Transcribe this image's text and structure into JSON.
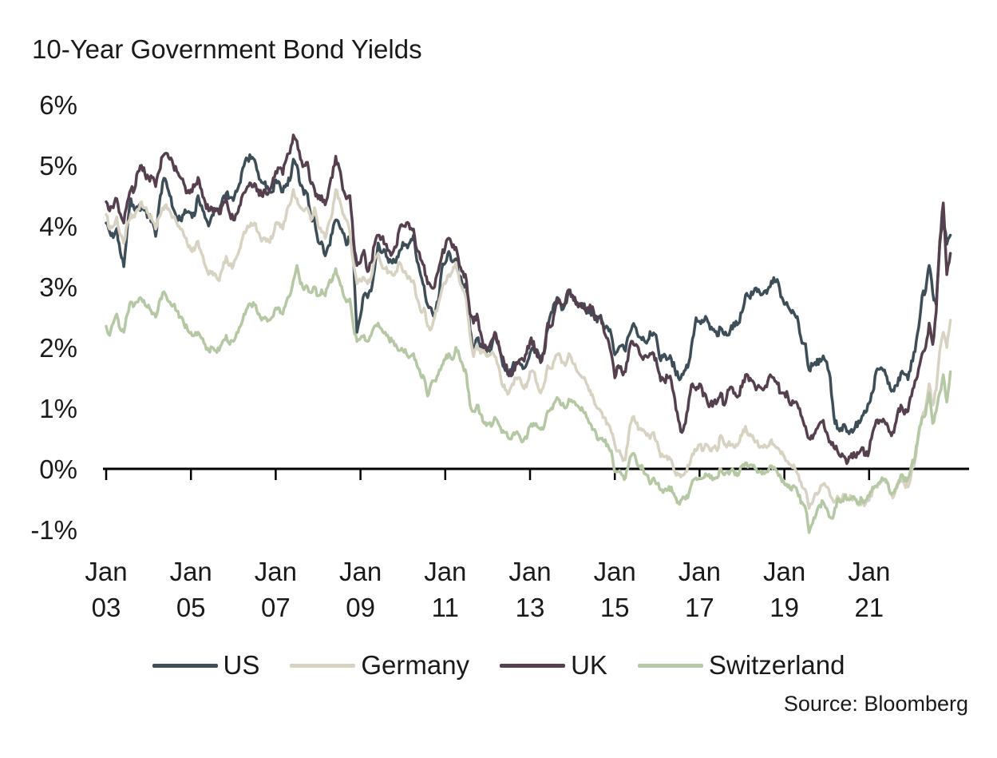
{
  "chart_data": {
    "type": "line",
    "title": "10-Year Government Bond Yields",
    "xlabel": "",
    "ylabel": "",
    "y_unit": "%",
    "ylim": [
      -1,
      6
    ],
    "grid": false,
    "zero_axis_line": true,
    "legend_position": "bottom",
    "source": "Source: Bloomberg",
    "x_range": "Jan 2003 - Dec 2022",
    "points_per_year": 12,
    "x_start_year": 2003,
    "y_ticks": [
      {
        "label": "6%",
        "value": 6
      },
      {
        "label": "5%",
        "value": 5
      },
      {
        "label": "4%",
        "value": 4
      },
      {
        "label": "3%",
        "value": 3
      },
      {
        "label": "2%",
        "value": 2
      },
      {
        "label": "1%",
        "value": 1
      },
      {
        "label": "0%",
        "value": 0
      },
      {
        "label": "-1%",
        "value": -1
      }
    ],
    "x_ticks": [
      {
        "month": "Jan",
        "year": "03",
        "value": 2003
      },
      {
        "month": "Jan",
        "year": "05",
        "value": 2005
      },
      {
        "month": "Jan",
        "year": "07",
        "value": 2007
      },
      {
        "month": "Jan",
        "year": "09",
        "value": 2009
      },
      {
        "month": "Jan",
        "year": "11",
        "value": 2011
      },
      {
        "month": "Jan",
        "year": "13",
        "value": 2013
      },
      {
        "month": "Jan",
        "year": "15",
        "value": 2015
      },
      {
        "month": "Jan",
        "year": "17",
        "value": 2017
      },
      {
        "month": "Jan",
        "year": "19",
        "value": 2019
      },
      {
        "month": "Jan",
        "year": "21",
        "value": 2021
      }
    ],
    "series": [
      {
        "name": "US",
        "color": "#3d4e59",
        "values_monthly": [
          4.05,
          3.9,
          3.81,
          3.96,
          3.57,
          3.33,
          3.98,
          4.45,
          4.27,
          4.29,
          4.3,
          4.27,
          4.15,
          4.08,
          3.83,
          4.35,
          4.72,
          4.73,
          4.5,
          4.28,
          4.13,
          4.1,
          4.19,
          4.23,
          4.22,
          4.17,
          4.5,
          4.34,
          4.14,
          4.0,
          4.18,
          4.26,
          4.2,
          4.46,
          4.54,
          4.47,
          4.42,
          4.57,
          4.72,
          4.99,
          5.11,
          5.11,
          5.09,
          4.88,
          4.72,
          4.73,
          4.6,
          4.56,
          4.76,
          4.72,
          4.56,
          4.69,
          4.75,
          5.1,
          5.0,
          4.67,
          4.52,
          4.53,
          4.15,
          4.1,
          3.74,
          3.74,
          3.51,
          3.68,
          3.88,
          4.1,
          4.01,
          3.89,
          3.69,
          3.81,
          3.53,
          2.25,
          2.52,
          2.87,
          2.82,
          2.93,
          3.29,
          3.72,
          3.56,
          3.59,
          3.4,
          3.39,
          3.4,
          3.59,
          3.73,
          3.69,
          3.73,
          3.85,
          3.42,
          3.2,
          3.01,
          2.7,
          2.65,
          2.54,
          2.76,
          3.29,
          3.39,
          3.58,
          3.41,
          3.46,
          3.17,
          3.0,
          3.0,
          2.3,
          1.98,
          2.15,
          2.01,
          1.98,
          1.97,
          1.97,
          2.17,
          2.05,
          1.8,
          1.62,
          1.53,
          1.68,
          1.72,
          1.75,
          1.65,
          1.72,
          1.91,
          1.98,
          1.96,
          1.76,
          1.93,
          2.3,
          2.58,
          2.74,
          2.81,
          2.62,
          2.72,
          2.9,
          2.86,
          2.71,
          2.72,
          2.71,
          2.56,
          2.6,
          2.54,
          2.42,
          2.53,
          2.3,
          2.33,
          2.21,
          1.88,
          1.98,
          2.04,
          1.94,
          2.2,
          2.36,
          2.32,
          2.17,
          2.17,
          2.07,
          2.26,
          2.24,
          2.09,
          1.78,
          1.89,
          1.81,
          1.81,
          1.64,
          1.5,
          1.56,
          1.63,
          1.76,
          2.14,
          2.49,
          2.43,
          2.42,
          2.48,
          2.3,
          2.3,
          2.19,
          2.32,
          2.21,
          2.2,
          2.36,
          2.35,
          2.4,
          2.58,
          2.86,
          2.84,
          2.87,
          2.98,
          2.91,
          2.89,
          2.89,
          3.0,
          3.15,
          3.12,
          2.83,
          2.71,
          2.68,
          2.57,
          2.53,
          2.4,
          2.07,
          2.06,
          1.63,
          1.7,
          1.71,
          1.81,
          1.86,
          1.76,
          1.5,
          0.87,
          0.66,
          0.67,
          0.73,
          0.62,
          0.65,
          0.68,
          0.79,
          0.87,
          0.93,
          1.08,
          1.26,
          1.61,
          1.64,
          1.62,
          1.52,
          1.32,
          1.28,
          1.37,
          1.58,
          1.56,
          1.47,
          1.78,
          1.93,
          2.32,
          2.85,
          2.93,
          3.35,
          2.9,
          2.7,
          3.7,
          4.1,
          3.7,
          3.85
        ]
      },
      {
        "name": "Germany",
        "color": "#d8d2c3",
        "values_monthly": [
          4.19,
          3.95,
          4.0,
          4.15,
          3.85,
          3.72,
          4.05,
          4.2,
          4.15,
          4.28,
          4.4,
          4.3,
          4.2,
          4.1,
          3.95,
          4.15,
          4.3,
          4.35,
          4.25,
          4.15,
          4.05,
          3.95,
          3.85,
          3.7,
          3.6,
          3.6,
          3.75,
          3.55,
          3.35,
          3.2,
          3.25,
          3.2,
          3.1,
          3.3,
          3.5,
          3.35,
          3.35,
          3.5,
          3.65,
          3.9,
          4.0,
          4.05,
          4.05,
          3.9,
          3.75,
          3.8,
          3.75,
          3.8,
          4.05,
          4.05,
          3.95,
          4.2,
          4.35,
          4.6,
          4.45,
          4.3,
          4.25,
          4.3,
          4.1,
          4.3,
          4.0,
          3.9,
          3.8,
          4.05,
          4.2,
          4.6,
          4.45,
          4.2,
          4.1,
          3.9,
          3.4,
          3.05,
          3.1,
          3.15,
          3.05,
          3.15,
          3.45,
          3.55,
          3.35,
          3.3,
          3.25,
          3.2,
          3.25,
          3.4,
          3.25,
          3.2,
          3.15,
          3.1,
          2.8,
          2.6,
          2.65,
          2.35,
          2.3,
          2.5,
          2.7,
          2.95,
          3.05,
          3.2,
          3.25,
          3.4,
          3.1,
          2.95,
          2.75,
          2.2,
          1.85,
          2.05,
          1.9,
          1.95,
          1.85,
          1.9,
          1.85,
          1.7,
          1.4,
          1.3,
          1.25,
          1.4,
          1.5,
          1.5,
          1.35,
          1.35,
          1.6,
          1.6,
          1.4,
          1.25,
          1.4,
          1.7,
          1.65,
          1.8,
          1.9,
          1.75,
          1.7,
          1.9,
          1.75,
          1.65,
          1.55,
          1.5,
          1.4,
          1.3,
          1.15,
          1.0,
          0.95,
          0.85,
          0.75,
          0.6,
          0.4,
          0.3,
          0.2,
          0.15,
          0.6,
          0.85,
          0.75,
          0.65,
          0.65,
          0.55,
          0.5,
          0.6,
          0.45,
          0.2,
          0.2,
          0.15,
          0.15,
          -0.05,
          -0.1,
          -0.1,
          -0.05,
          0.05,
          0.25,
          0.3,
          0.4,
          0.3,
          0.4,
          0.3,
          0.35,
          0.3,
          0.55,
          0.4,
          0.4,
          0.4,
          0.35,
          0.42,
          0.55,
          0.7,
          0.55,
          0.55,
          0.45,
          0.35,
          0.35,
          0.35,
          0.45,
          0.4,
          0.35,
          0.25,
          0.2,
          0.12,
          0.05,
          0.0,
          -0.1,
          -0.3,
          -0.35,
          -0.65,
          -0.55,
          -0.4,
          -0.35,
          -0.25,
          -0.3,
          -0.45,
          -0.55,
          -0.45,
          -0.5,
          -0.42,
          -0.48,
          -0.45,
          -0.5,
          -0.6,
          -0.57,
          -0.57,
          -0.52,
          -0.35,
          -0.3,
          -0.25,
          -0.18,
          -0.2,
          -0.4,
          -0.45,
          -0.3,
          -0.12,
          -0.25,
          -0.3,
          -0.05,
          0.15,
          0.55,
          0.85,
          1.0,
          1.4,
          1.05,
          1.3,
          1.95,
          2.25,
          2.0,
          2.45
        ]
      },
      {
        "name": "UK",
        "color": "#564050",
        "values_monthly": [
          4.4,
          4.25,
          4.3,
          4.45,
          4.2,
          4.05,
          4.4,
          4.6,
          4.6,
          4.9,
          5.0,
          4.85,
          4.8,
          4.8,
          4.65,
          4.9,
          5.15,
          5.2,
          5.1,
          5.0,
          4.9,
          4.8,
          4.7,
          4.55,
          4.6,
          4.65,
          4.8,
          4.6,
          4.4,
          4.25,
          4.3,
          4.25,
          4.2,
          4.35,
          4.45,
          4.2,
          4.1,
          4.2,
          4.35,
          4.55,
          4.65,
          4.7,
          4.7,
          4.6,
          4.5,
          4.6,
          4.55,
          4.7,
          4.9,
          4.95,
          4.85,
          5.1,
          5.2,
          5.5,
          5.4,
          5.1,
          5.0,
          5.05,
          4.7,
          4.6,
          4.45,
          4.5,
          4.35,
          4.6,
          4.8,
          5.15,
          4.95,
          4.6,
          4.45,
          4.5,
          3.8,
          3.35,
          3.4,
          3.6,
          3.25,
          3.4,
          3.7,
          3.85,
          3.8,
          3.7,
          3.6,
          3.55,
          3.65,
          3.95,
          4.0,
          4.05,
          3.95,
          3.95,
          3.6,
          3.45,
          3.35,
          3.05,
          3.0,
          3.0,
          3.25,
          3.5,
          3.65,
          3.8,
          3.65,
          3.65,
          3.35,
          3.25,
          3.1,
          2.55,
          2.4,
          2.55,
          2.25,
          2.0,
          2.0,
          2.1,
          2.25,
          2.1,
          1.85,
          1.7,
          1.55,
          1.55,
          1.75,
          1.8,
          1.8,
          1.9,
          2.1,
          2.1,
          1.85,
          1.75,
          1.9,
          2.4,
          2.35,
          2.6,
          2.8,
          2.7,
          2.75,
          2.95,
          2.85,
          2.75,
          2.7,
          2.65,
          2.6,
          2.7,
          2.6,
          2.45,
          2.5,
          2.25,
          2.15,
          1.9,
          1.5,
          1.7,
          1.6,
          1.6,
          1.95,
          2.1,
          2.05,
          1.9,
          1.8,
          1.85,
          1.9,
          1.9,
          1.7,
          1.45,
          1.45,
          1.5,
          1.45,
          1.15,
          0.8,
          0.6,
          0.75,
          1.15,
          1.4,
          1.3,
          1.4,
          1.2,
          1.15,
          1.05,
          1.1,
          1.1,
          1.25,
          1.05,
          1.3,
          1.35,
          1.25,
          1.2,
          1.35,
          1.55,
          1.45,
          1.45,
          1.3,
          1.35,
          1.3,
          1.35,
          1.55,
          1.5,
          1.4,
          1.25,
          1.25,
          1.2,
          1.05,
          1.1,
          1.0,
          0.85,
          0.7,
          0.5,
          0.5,
          0.65,
          0.75,
          0.8,
          0.6,
          0.45,
          0.35,
          0.3,
          0.2,
          0.2,
          0.12,
          0.25,
          0.2,
          0.25,
          0.35,
          0.22,
          0.3,
          0.6,
          0.8,
          0.8,
          0.82,
          0.75,
          0.6,
          0.6,
          0.9,
          1.05,
          0.9,
          0.95,
          1.2,
          1.45,
          1.65,
          1.9,
          2.0,
          2.4,
          2.05,
          2.6,
          3.75,
          4.38,
          3.2,
          3.55
        ]
      },
      {
        "name": "Switzerland",
        "color": "#b5c8a4",
        "values_monthly": [
          2.35,
          2.2,
          2.4,
          2.55,
          2.3,
          2.25,
          2.55,
          2.75,
          2.7,
          2.75,
          2.8,
          2.7,
          2.7,
          2.55,
          2.5,
          2.75,
          2.9,
          2.85,
          2.75,
          2.7,
          2.6,
          2.5,
          2.4,
          2.3,
          2.25,
          2.2,
          2.25,
          2.15,
          2.05,
          1.95,
          2.0,
          1.95,
          1.95,
          2.1,
          2.2,
          2.05,
          2.1,
          2.25,
          2.35,
          2.55,
          2.65,
          2.7,
          2.7,
          2.55,
          2.45,
          2.5,
          2.45,
          2.5,
          2.65,
          2.65,
          2.55,
          2.75,
          2.85,
          3.1,
          3.35,
          3.05,
          2.95,
          3.0,
          2.9,
          3.0,
          2.85,
          2.95,
          2.85,
          3.05,
          3.1,
          3.3,
          3.1,
          2.9,
          2.75,
          2.8,
          2.35,
          2.1,
          2.15,
          2.2,
          2.1,
          2.2,
          2.35,
          2.4,
          2.3,
          2.25,
          2.15,
          2.1,
          2.05,
          1.95,
          1.95,
          1.9,
          1.85,
          1.9,
          1.7,
          1.55,
          1.5,
          1.2,
          1.4,
          1.45,
          1.55,
          1.7,
          1.8,
          1.9,
          1.8,
          2.0,
          1.85,
          1.7,
          1.55,
          1.05,
          0.95,
          1.05,
          0.9,
          0.75,
          0.75,
          0.7,
          0.85,
          0.75,
          0.6,
          0.6,
          0.5,
          0.55,
          0.6,
          0.55,
          0.45,
          0.5,
          0.7,
          0.75,
          0.7,
          0.65,
          0.7,
          0.95,
          1.0,
          1.1,
          1.15,
          1.05,
          1.0,
          1.15,
          1.1,
          1.05,
          1.0,
          0.95,
          0.85,
          0.75,
          0.65,
          0.5,
          0.5,
          0.45,
          0.4,
          0.3,
          -0.05,
          -0.05,
          -0.1,
          -0.15,
          0.1,
          0.25,
          0.15,
          0.05,
          0.0,
          -0.1,
          -0.25,
          -0.15,
          -0.25,
          -0.35,
          -0.35,
          -0.35,
          -0.3,
          -0.45,
          -0.55,
          -0.5,
          -0.5,
          -0.4,
          -0.2,
          -0.15,
          -0.15,
          -0.15,
          -0.1,
          -0.15,
          -0.15,
          -0.15,
          0.0,
          -0.1,
          -0.05,
          -0.02,
          -0.1,
          -0.1,
          0.05,
          0.1,
          0.05,
          0.05,
          0.0,
          -0.05,
          -0.05,
          -0.05,
          0.05,
          0.03,
          -0.05,
          -0.15,
          -0.25,
          -0.3,
          -0.35,
          -0.3,
          -0.45,
          -0.55,
          -0.65,
          -1.05,
          -0.9,
          -0.75,
          -0.6,
          -0.55,
          -0.65,
          -0.8,
          -0.75,
          -0.5,
          -0.55,
          -0.45,
          -0.5,
          -0.48,
          -0.5,
          -0.55,
          -0.5,
          -0.52,
          -0.45,
          -0.3,
          -0.28,
          -0.22,
          -0.18,
          -0.22,
          -0.4,
          -0.4,
          -0.25,
          -0.1,
          -0.2,
          -0.15,
          0.05,
          0.2,
          0.6,
          0.85,
          0.9,
          1.25,
          0.75,
          0.95,
          1.25,
          1.55,
          1.1,
          1.6
        ]
      }
    ]
  }
}
